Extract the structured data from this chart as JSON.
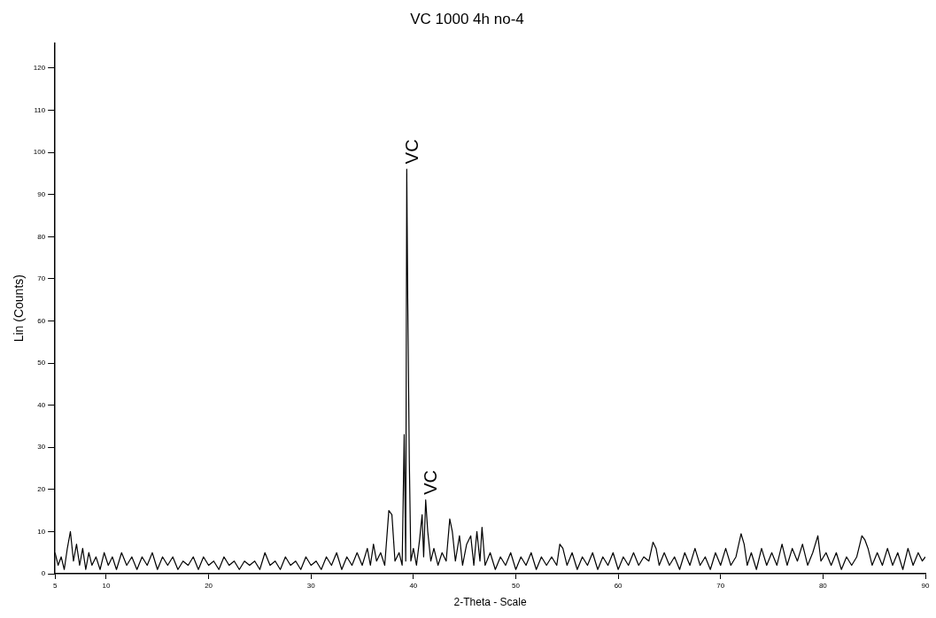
{
  "chart_data": {
    "type": "line",
    "title": "VC 1000 4h no-4",
    "xlabel": "2-Theta - Scale",
    "ylabel": "Lin (Counts)",
    "xlim": [
      5,
      90
    ],
    "ylim": [
      0,
      126
    ],
    "xticks": [
      5,
      10,
      20,
      30,
      40,
      50,
      60,
      70,
      80,
      90
    ],
    "yticks": [
      0,
      10,
      20,
      30,
      40,
      50,
      60,
      70,
      80,
      90,
      100,
      110,
      120
    ],
    "marker": "none",
    "annotations": [
      {
        "text": "VC",
        "x": 39.35,
        "y": 96
      },
      {
        "text": "VC",
        "x": 41.2,
        "y": 17.5
      }
    ],
    "x": [
      5.0,
      5.3,
      5.6,
      5.9,
      6.2,
      6.5,
      6.8,
      7.1,
      7.4,
      7.7,
      8.0,
      8.3,
      8.6,
      9.0,
      9.4,
      9.8,
      10.2,
      10.6,
      11.0,
      11.5,
      12.0,
      12.5,
      13.0,
      13.5,
      14.0,
      14.5,
      15.0,
      15.5,
      16.0,
      16.5,
      17.0,
      17.5,
      18.0,
      18.5,
      19.0,
      19.5,
      20.0,
      20.5,
      21.0,
      21.5,
      22.0,
      22.5,
      23.0,
      23.5,
      24.0,
      24.5,
      25.0,
      25.5,
      26.0,
      26.5,
      27.0,
      27.5,
      28.0,
      28.5,
      29.0,
      29.5,
      30.0,
      30.5,
      31.0,
      31.5,
      32.0,
      32.5,
      33.0,
      33.5,
      34.0,
      34.5,
      35.0,
      35.5,
      35.8,
      36.1,
      36.4,
      36.8,
      37.2,
      37.6,
      37.9,
      38.2,
      38.6,
      38.9,
      39.1,
      39.25,
      39.35,
      39.45,
      39.6,
      39.75,
      40.0,
      40.3,
      40.6,
      40.85,
      41.0,
      41.2,
      41.4,
      41.7,
      42.0,
      42.4,
      42.8,
      43.2,
      43.55,
      43.8,
      44.1,
      44.5,
      44.8,
      45.2,
      45.6,
      45.9,
      46.2,
      46.5,
      46.7,
      47.0,
      47.5,
      48.0,
      48.5,
      49.0,
      49.5,
      50.0,
      50.5,
      51.0,
      51.5,
      52.0,
      52.5,
      53.0,
      53.5,
      54.0,
      54.3,
      54.6,
      55.0,
      55.5,
      56.0,
      56.5,
      57.0,
      57.5,
      58.0,
      58.5,
      59.0,
      59.5,
      60.0,
      60.5,
      61.0,
      61.5,
      62.0,
      62.5,
      63.0,
      63.4,
      63.7,
      64.0,
      64.5,
      65.0,
      65.5,
      66.0,
      66.5,
      67.0,
      67.5,
      68.0,
      68.5,
      69.0,
      69.5,
      70.0,
      70.5,
      71.0,
      71.5,
      72.0,
      72.3,
      72.6,
      73.0,
      73.5,
      74.0,
      74.5,
      75.0,
      75.5,
      76.0,
      76.5,
      77.0,
      77.5,
      78.0,
      78.5,
      79.0,
      79.5,
      79.8,
      80.3,
      80.8,
      81.3,
      81.8,
      82.3,
      82.8,
      83.3,
      83.8,
      84.1,
      84.4,
      84.8,
      85.3,
      85.8,
      86.3,
      86.8,
      87.3,
      87.8,
      88.3,
      88.8,
      89.3,
      89.7,
      90.0
    ],
    "series": [
      {
        "color": "#000000",
        "values": [
          5,
          2,
          4,
          1,
          6,
          10,
          3,
          7,
          2,
          6,
          1,
          5,
          2,
          4,
          1,
          5,
          2,
          4,
          1,
          5,
          2,
          4,
          1,
          4,
          2,
          5,
          1,
          4,
          2,
          4,
          1,
          3,
          2,
          4,
          1,
          4,
          2,
          3,
          1,
          4,
          2,
          3,
          1,
          3,
          2,
          3,
          1,
          5,
          2,
          3,
          1,
          4,
          2,
          3,
          1,
          4,
          2,
          3,
          1,
          4,
          2,
          5,
          1,
          4,
          2,
          5,
          2,
          6,
          2,
          7,
          3,
          5,
          2,
          15,
          14,
          3,
          5,
          2,
          33,
          3,
          96,
          64,
          27,
          3,
          6,
          2,
          8,
          14,
          4,
          17.5,
          10,
          3,
          6,
          2,
          5,
          3,
          13,
          10,
          3,
          9,
          2,
          7,
          9,
          2,
          10,
          3,
          11,
          2,
          5,
          1,
          4,
          2,
          5,
          1,
          4,
          2,
          5,
          1,
          4,
          2,
          4,
          2,
          7,
          6,
          2,
          5,
          1,
          4,
          2,
          5,
          1,
          4,
          2,
          5,
          1,
          4,
          2,
          5,
          2,
          4,
          3,
          7.5,
          6,
          2,
          5,
          2,
          4,
          1,
          5,
          2,
          6,
          2,
          4,
          1,
          5,
          2,
          6,
          2,
          4,
          9.5,
          7,
          2,
          5,
          1,
          6,
          2,
          5,
          2,
          7,
          2,
          6,
          3,
          7,
          2,
          5,
          9,
          3,
          5,
          2,
          5,
          1,
          4,
          2,
          4,
          9,
          8,
          6,
          2,
          5,
          2,
          6,
          2,
          5,
          1,
          6,
          2,
          5,
          3,
          4
        ]
      }
    ]
  }
}
